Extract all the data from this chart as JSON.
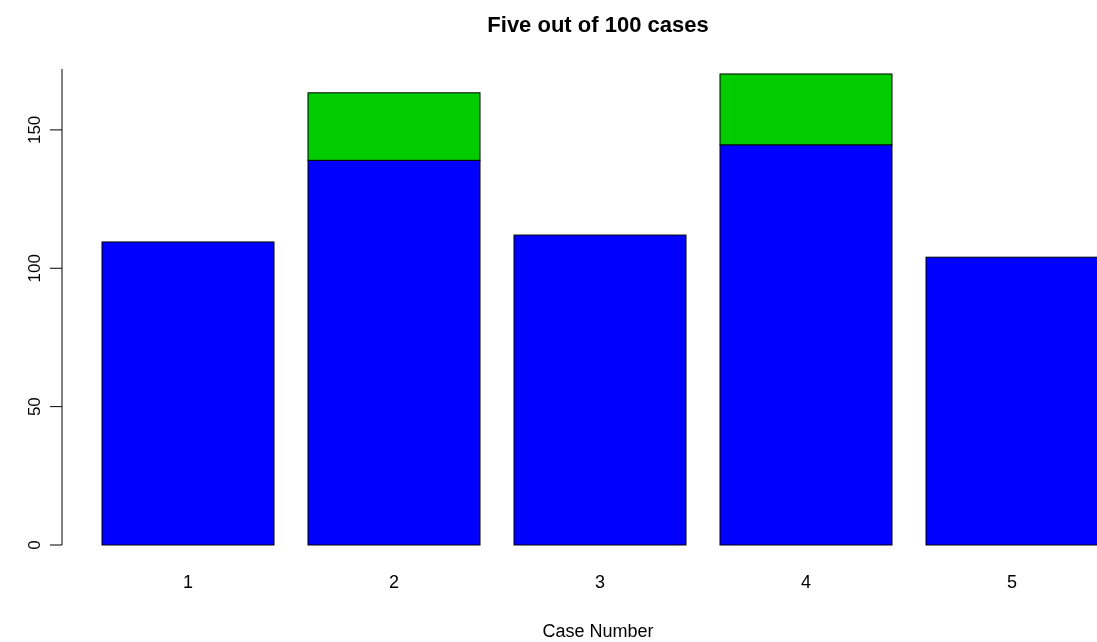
{
  "chart_data": {
    "type": "bar",
    "title": "Five out of 100 cases",
    "xlabel": "Case Number",
    "categories": [
      "1",
      "2",
      "3",
      "4",
      "5"
    ],
    "stacked": true,
    "series": [
      {
        "color": "#0000ff",
        "values": [
          109.5,
          139,
          112,
          144.6,
          104
        ]
      },
      {
        "color": "#00cc00",
        "values": [
          null,
          24.4,
          null,
          25.6,
          null
        ]
      }
    ],
    "ylim": [
      0,
      172
    ],
    "yticks": [
      0,
      50,
      100,
      150
    ]
  }
}
